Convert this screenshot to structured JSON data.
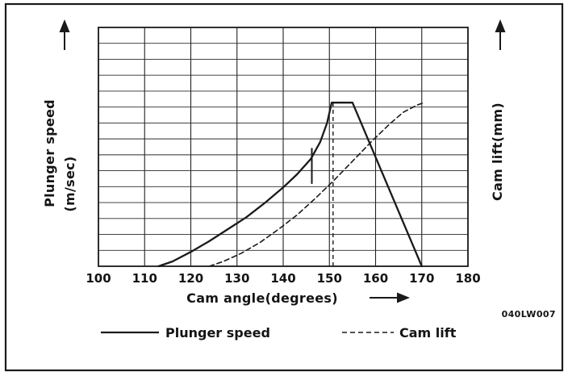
{
  "frame": {
    "code": "040LW007"
  },
  "labels": {
    "ylabel_left_line1": "Plunger speed",
    "ylabel_left_line2": "(m/sec)",
    "ylabel_right": "Cam lift(mm)",
    "xlabel": "Cam angle(degrees)"
  },
  "legend": [
    {
      "label": "Plunger speed",
      "style": "solid"
    },
    {
      "label": "Cam lift",
      "style": "dashed"
    }
  ],
  "chart_data": {
    "type": "line",
    "title": "",
    "xlabel": "Cam angle(degrees)",
    "ylabel_left": "Plunger speed (m/sec)",
    "ylabel_right": "Cam lift(mm)",
    "xlim": [
      100,
      180
    ],
    "x_ticks": [
      100,
      110,
      120,
      130,
      140,
      150,
      160,
      170,
      180
    ],
    "y_axis_note": "no numeric ticks shown; values normalized 0-1 of plot height",
    "grid": {
      "h_divisions": 15,
      "v_lines_at_each_x_tick": true
    },
    "series": [
      {
        "name": "Plunger speed",
        "style": "solid",
        "points": [
          [
            113,
            0
          ],
          [
            116,
            0.02
          ],
          [
            120,
            0.06
          ],
          [
            124,
            0.105
          ],
          [
            128,
            0.155
          ],
          [
            132,
            0.205
          ],
          [
            136,
            0.265
          ],
          [
            140,
            0.33
          ],
          [
            143,
            0.385
          ],
          [
            146,
            0.45
          ],
          [
            148,
            0.52
          ],
          [
            149.5,
            0.6
          ],
          [
            150.5,
            0.685
          ],
          [
            155,
            0.685
          ],
          [
            170,
            0
          ]
        ]
      },
      {
        "name": "Cam lift",
        "style": "dashed",
        "points": [
          [
            124,
            0
          ],
          [
            127,
            0.02
          ],
          [
            131,
            0.055
          ],
          [
            135,
            0.1
          ],
          [
            139,
            0.155
          ],
          [
            143,
            0.215
          ],
          [
            147,
            0.285
          ],
          [
            151,
            0.36
          ],
          [
            155,
            0.44
          ],
          [
            159,
            0.52
          ],
          [
            163,
            0.595
          ],
          [
            166,
            0.645
          ],
          [
            169,
            0.675
          ],
          [
            170.5,
            0.685
          ]
        ]
      }
    ],
    "annotations": [
      {
        "type": "dashed-vline",
        "x": 150.8,
        "v1": 0,
        "v2": 0.685
      },
      {
        "type": "solid-vseg",
        "x": 146.2,
        "v1": 0.345,
        "v2": 0.495
      }
    ],
    "legend_position": "bottom"
  }
}
